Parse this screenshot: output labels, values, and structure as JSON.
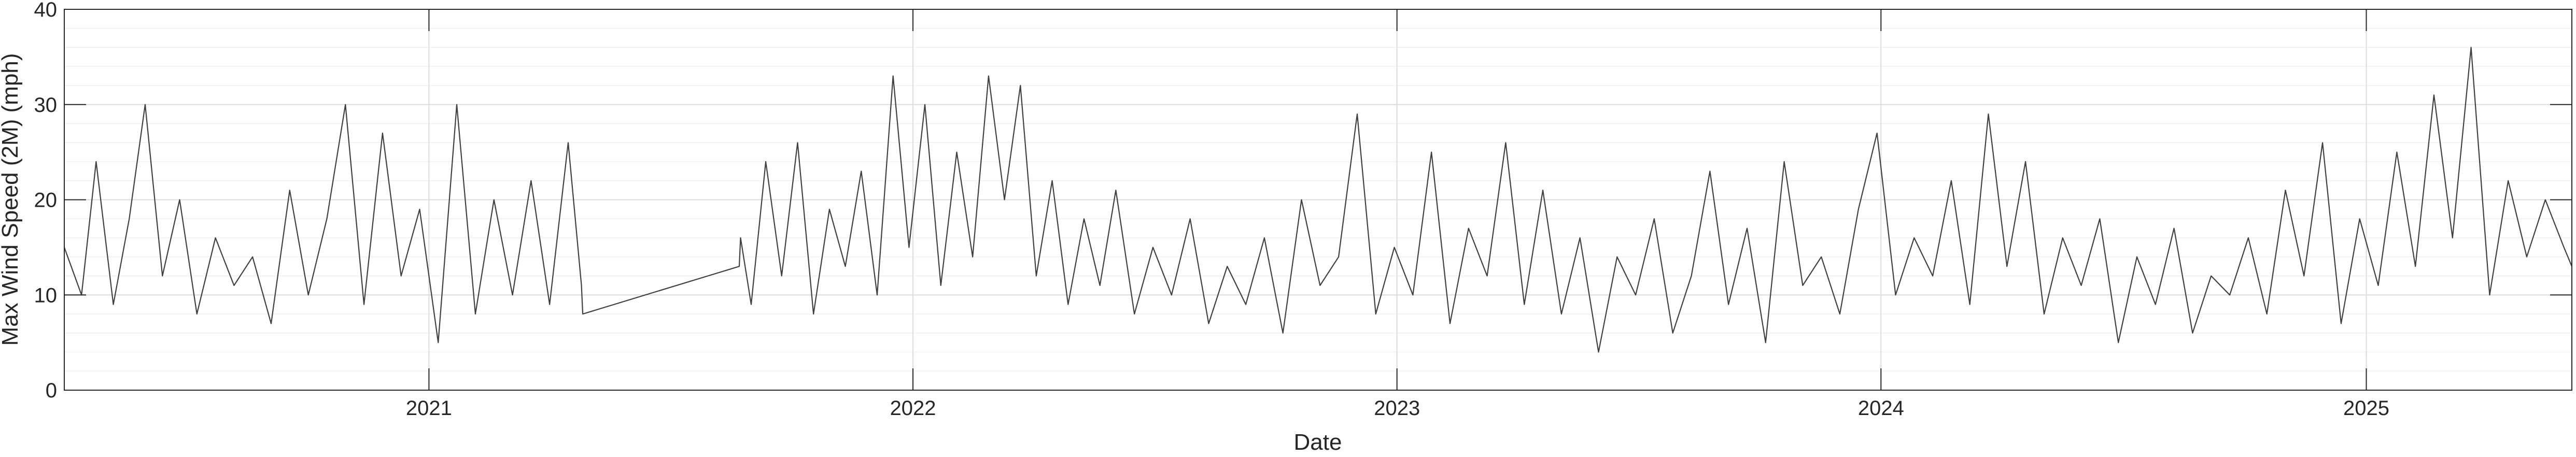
{
  "chart_data": {
    "type": "line",
    "title": "",
    "xlabel": "Date",
    "ylabel": "Max Wind Speed (2M) (mph)",
    "ylim": [
      0,
      40
    ],
    "yticks": [
      "0",
      "10",
      "20",
      "30",
      "40"
    ],
    "xlim": [
      "2020-04-01",
      "2025-06-05"
    ],
    "xticks": [
      {
        "date": "2021-01-01",
        "label": "2021"
      },
      {
        "date": "2022-01-01",
        "label": "2022"
      },
      {
        "date": "2023-01-01",
        "label": "2023"
      },
      {
        "date": "2024-01-01",
        "label": "2024"
      },
      {
        "date": "2025-01-01",
        "label": "2025"
      }
    ],
    "grid": true,
    "minor_grid": true,
    "line_color": "#404040",
    "series": [
      {
        "x": [
          "2020-04-01",
          "2020-04-14",
          "2020-04-25",
          "2020-05-08",
          "2020-05-20",
          "2020-06-01",
          "2020-06-14",
          "2020-06-27",
          "2020-07-10",
          "2020-07-24",
          "2020-08-07",
          "2020-08-21",
          "2020-09-04",
          "2020-09-18",
          "2020-10-02",
          "2020-10-16",
          "2020-10-30",
          "2020-11-13",
          "2020-11-27",
          "2020-12-11",
          "2020-12-25",
          "2021-01-08",
          "2021-01-22",
          "2021-02-05",
          "2021-02-19",
          "2021-03-05",
          "2021-03-19",
          "2021-04-02",
          "2021-04-16",
          "2021-04-26",
          "2021-04-27",
          "2021-08-23",
          "2021-08-24",
          "2021-09-01",
          "2021-09-12",
          "2021-09-24",
          "2021-10-06",
          "2021-10-18",
          "2021-10-30",
          "2021-11-11",
          "2021-11-23",
          "2021-12-05",
          "2021-12-17",
          "2021-12-29",
          "2022-01-10",
          "2022-01-22",
          "2022-02-03",
          "2022-02-15",
          "2022-02-27",
          "2022-03-11",
          "2022-03-23",
          "2022-04-04",
          "2022-04-16",
          "2022-04-28",
          "2022-05-10",
          "2022-05-22",
          "2022-06-03",
          "2022-06-17",
          "2022-07-01",
          "2022-07-15",
          "2022-07-29",
          "2022-08-12",
          "2022-08-26",
          "2022-09-09",
          "2022-09-23",
          "2022-10-07",
          "2022-10-21",
          "2022-11-04",
          "2022-11-18",
          "2022-12-02",
          "2022-12-16",
          "2022-12-30",
          "2023-01-13",
          "2023-01-27",
          "2023-02-10",
          "2023-02-24",
          "2023-03-10",
          "2023-03-24",
          "2023-04-07",
          "2023-04-21",
          "2023-05-05",
          "2023-05-19",
          "2023-06-02",
          "2023-06-16",
          "2023-06-30",
          "2023-07-14",
          "2023-07-28",
          "2023-08-11",
          "2023-08-25",
          "2023-09-08",
          "2023-09-22",
          "2023-10-06",
          "2023-10-20",
          "2023-11-03",
          "2023-11-17",
          "2023-12-01",
          "2023-12-15",
          "2023-12-29",
          "2024-01-12",
          "2024-01-26",
          "2024-02-09",
          "2024-02-23",
          "2024-03-08",
          "2024-03-22",
          "2024-04-05",
          "2024-04-19",
          "2024-05-03",
          "2024-05-17",
          "2024-05-31",
          "2024-06-14",
          "2024-06-28",
          "2024-07-12",
          "2024-07-26",
          "2024-08-09",
          "2024-08-23",
          "2024-09-06",
          "2024-09-20",
          "2024-10-04",
          "2024-10-18",
          "2024-11-01",
          "2024-11-15",
          "2024-11-29",
          "2024-12-13",
          "2024-12-27",
          "2025-01-10",
          "2025-01-24",
          "2025-02-07",
          "2025-02-21",
          "2025-03-07",
          "2025-03-21",
          "2025-04-04",
          "2025-04-18",
          "2025-05-02",
          "2025-05-16",
          "2025-05-30",
          "2025-06-05"
        ],
        "y": [
          15,
          10,
          24,
          9,
          18,
          30,
          12,
          20,
          8,
          16,
          11,
          14,
          7,
          21,
          10,
          18,
          30,
          9,
          27,
          12,
          19,
          5,
          30,
          8,
          20,
          10,
          22,
          9,
          26,
          11,
          8,
          13,
          16,
          9,
          24,
          12,
          26,
          8,
          19,
          13,
          23,
          10,
          33,
          15,
          30,
          11,
          25,
          14,
          33,
          20,
          32,
          12,
          22,
          9,
          18,
          11,
          21,
          8,
          15,
          10,
          18,
          7,
          13,
          9,
          16,
          6,
          20,
          11,
          14,
          29,
          8,
          15,
          10,
          25,
          7,
          17,
          12,
          26,
          9,
          21,
          8,
          16,
          4,
          14,
          10,
          18,
          6,
          12,
          23,
          9,
          17,
          5,
          24,
          11,
          14,
          8,
          19,
          27,
          10,
          16,
          12,
          22,
          9,
          29,
          13,
          24,
          8,
          16,
          11,
          18,
          5,
          14,
          9,
          17,
          6,
          12,
          10,
          16,
          8,
          21,
          12,
          26,
          7,
          18,
          11,
          25,
          13,
          31,
          16,
          36,
          10,
          22,
          14,
          20,
          15,
          13
        ]
      }
    ]
  }
}
